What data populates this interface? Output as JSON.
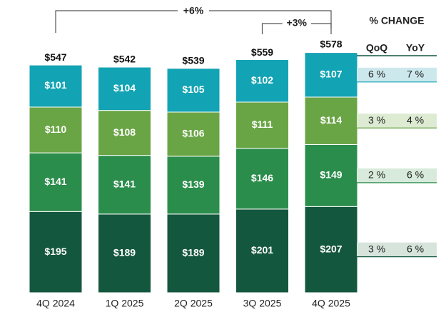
{
  "chart_data": {
    "type": "stacked-bar",
    "categories": [
      "4Q 2024",
      "1Q 2025",
      "2Q 2025",
      "3Q 2025",
      "4Q 2025"
    ],
    "series": [
      {
        "color": "#14573f",
        "values": [
          195,
          189,
          189,
          201,
          207
        ],
        "value_labels": [
          "$195",
          "$189",
          "$189",
          "$201",
          "$207"
        ]
      },
      {
        "color": "#2b8d4b",
        "values": [
          141,
          141,
          139,
          146,
          149
        ],
        "value_labels": [
          "$141",
          "$141",
          "$139",
          "$146",
          "$149"
        ]
      },
      {
        "color": "#6aa545",
        "values": [
          110,
          108,
          106,
          111,
          114
        ],
        "value_labels": [
          "$110",
          "$108",
          "$106",
          "$111",
          "$114"
        ]
      },
      {
        "color": "#12a3b4",
        "values": [
          101,
          104,
          105,
          102,
          107
        ],
        "value_labels": [
          "$101",
          "$104",
          "$105",
          "$102",
          "$107"
        ]
      }
    ],
    "totals": [
      547,
      542,
      539,
      559,
      578
    ],
    "total_labels": [
      "$547",
      "$542",
      "$539",
      "$559",
      "$578"
    ],
    "annotations": [
      "+6%",
      "+3%"
    ],
    "table": {
      "title": "% CHANGE",
      "columns": [
        "QoQ",
        "YoY"
      ],
      "rows": [
        [
          "6 %",
          "7 %"
        ],
        [
          "3 %",
          "4 %"
        ],
        [
          "2 %",
          "6 %"
        ],
        [
          "3 %",
          "6 %"
        ]
      ]
    }
  }
}
